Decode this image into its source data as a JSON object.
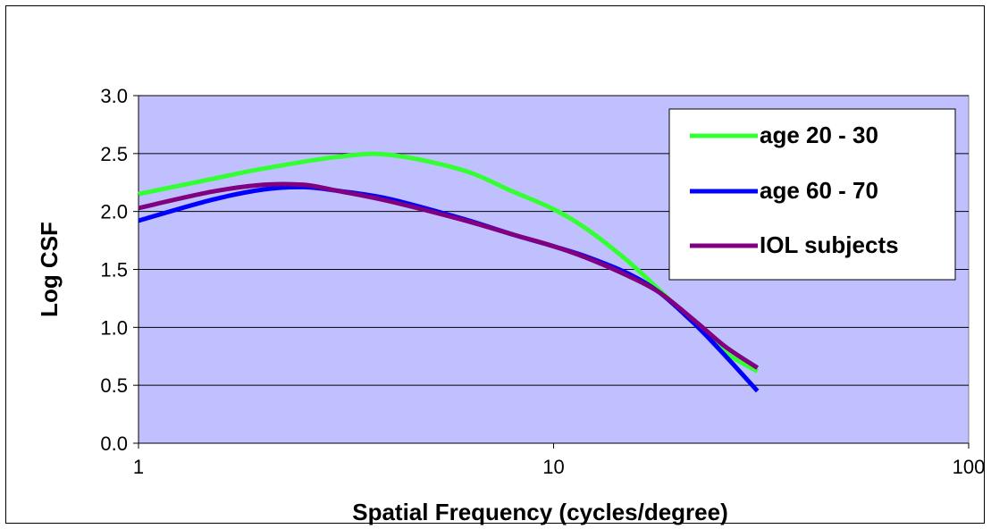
{
  "colors": {
    "plot_background": "#c0c0ff",
    "gridline": "#000000",
    "age_20_30": "#33ff33",
    "age_60_70": "#0000ff",
    "iol": "#800080"
  },
  "chart_data": {
    "type": "line",
    "xlabel": "Spatial Frequency (cycles/degree)",
    "ylabel": "Log CSF",
    "x_scale": "log",
    "xlim": [
      1,
      100
    ],
    "ylim": [
      0,
      3
    ],
    "x_ticks": [
      "1",
      "10",
      "100"
    ],
    "y_ticks": [
      "0.0",
      "0.5",
      "1.0",
      "1.5",
      "2.0",
      "2.5",
      "3.0"
    ],
    "grid": "horizontal",
    "legend_position": "top-right",
    "series": [
      {
        "name": "age 20 - 30",
        "color": "#33ff33",
        "x": [
          1,
          1.5,
          2,
          3,
          4,
          6,
          8,
          10,
          12,
          15,
          18,
          22,
          26,
          31
        ],
        "y": [
          2.15,
          2.28,
          2.37,
          2.47,
          2.49,
          2.36,
          2.17,
          2.02,
          1.85,
          1.58,
          1.32,
          1.02,
          0.78,
          0.62
        ]
      },
      {
        "name": "age 60 - 70",
        "color": "#0000ff",
        "x": [
          1,
          1.5,
          2,
          2.5,
          3,
          4,
          6,
          8,
          10,
          12,
          15,
          18,
          22,
          26,
          31
        ],
        "y": [
          1.92,
          2.1,
          2.19,
          2.21,
          2.18,
          2.11,
          1.94,
          1.8,
          1.7,
          1.61,
          1.47,
          1.3,
          1.02,
          0.75,
          0.45
        ]
      },
      {
        "name": "IOL subjects",
        "color": "#800080",
        "x": [
          1,
          1.5,
          2,
          2.5,
          3,
          4,
          6,
          8,
          10,
          12,
          15,
          18,
          22,
          26,
          31
        ],
        "y": [
          2.03,
          2.17,
          2.23,
          2.23,
          2.18,
          2.09,
          1.93,
          1.8,
          1.7,
          1.6,
          1.45,
          1.3,
          1.05,
          0.83,
          0.65
        ]
      }
    ]
  }
}
